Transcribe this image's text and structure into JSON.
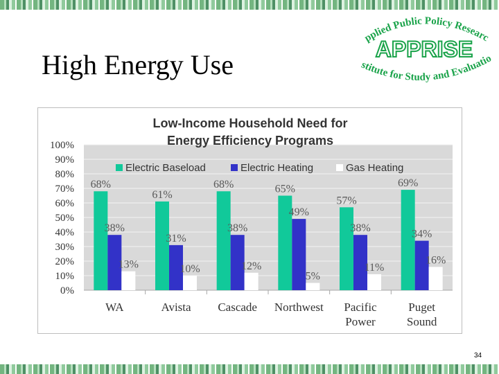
{
  "slide": {
    "title": "High Energy Use",
    "page_number": "34"
  },
  "logo": {
    "top_text": "Applied Public Policy Research",
    "name": "APPRISE",
    "bottom_text": "Institute for Study and Evaluation",
    "color": "#1aa34a"
  },
  "chart_data": {
    "type": "bar",
    "title_lines": [
      "Low-Income Household Need for",
      "Energy Efficiency Programs"
    ],
    "categories": [
      [
        "WA"
      ],
      [
        "Avista"
      ],
      [
        "Cascade"
      ],
      [
        "Northwest"
      ],
      [
        "Pacific",
        "Power"
      ],
      [
        "Puget",
        "Sound"
      ]
    ],
    "series": [
      {
        "name": "Electric Baseload",
        "color": "#11c99a",
        "values": [
          68,
          61,
          68,
          65,
          57,
          69
        ]
      },
      {
        "name": "Electric Heating",
        "color": "#3232c8",
        "values": [
          38,
          31,
          38,
          49,
          38,
          34
        ]
      },
      {
        "name": "Gas Heating",
        "color": "#ffffff",
        "values": [
          13,
          10,
          12,
          5,
          11,
          16
        ]
      }
    ],
    "ylim": [
      0,
      100
    ],
    "yticks": [
      "0%",
      "10%",
      "20%",
      "30%",
      "40%",
      "50%",
      "60%",
      "70%",
      "80%",
      "90%",
      "100%"
    ],
    "value_suffix": "%",
    "legend_position": "top-left",
    "grid": true,
    "plot_background": "#d9d9d9"
  }
}
